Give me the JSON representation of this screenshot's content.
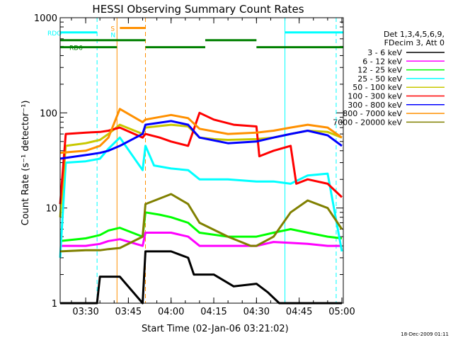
{
  "chart_data": {
    "type": "line",
    "title": "HESSI Observing Summary Count Rates",
    "xlabel": "Start Time (02-Jan-06 03:21:02)",
    "ylabel": "Count Rate (s⁻¹ detector⁻¹)",
    "yscale": "log",
    "xlim": [
      "03:21:02",
      "05:00:30"
    ],
    "ylim": [
      1,
      1000
    ],
    "x_ticks": [
      "03:30",
      "03:45",
      "04:00",
      "04:15",
      "04:30",
      "04:45",
      "05:00"
    ],
    "y_ticks": [
      "1",
      "10",
      "100",
      "1000"
    ],
    "legend_header": [
      "Det 1,3,4,5,6,9,",
      "FDecim 3, Att 0"
    ],
    "timestamp": "18-Dec-2009 01:11",
    "series": [
      {
        "name": "3 - 6 keV",
        "color": "#000000",
        "points": [
          [
            "03:21:02",
            1
          ],
          [
            "03:34",
            1
          ],
          [
            "03:35",
            1.9
          ],
          [
            "03:37",
            1.9
          ],
          [
            "03:42",
            1.9
          ],
          [
            "03:50",
            1
          ],
          [
            "03:51",
            3.5
          ],
          [
            "04:00",
            3.5
          ],
          [
            "04:06",
            3
          ],
          [
            "04:08",
            2
          ],
          [
            "04:15",
            2
          ],
          [
            "04:22",
            1.5
          ],
          [
            "04:30",
            1.6
          ],
          [
            "04:34",
            1.3
          ],
          [
            "04:38",
            1
          ],
          [
            "04:55",
            1
          ],
          [
            "05:00",
            1
          ]
        ]
      },
      {
        "name": "6 - 12 keV",
        "color": "#ff00ff",
        "points": [
          [
            "03:21:02",
            4
          ],
          [
            "03:30",
            4
          ],
          [
            "03:35",
            4.2
          ],
          [
            "03:38",
            4.5
          ],
          [
            "03:42",
            4.7
          ],
          [
            "03:50",
            4
          ],
          [
            "03:51",
            5.5
          ],
          [
            "04:00",
            5.5
          ],
          [
            "04:06",
            5
          ],
          [
            "04:10",
            4
          ],
          [
            "04:20",
            4
          ],
          [
            "04:30",
            4
          ],
          [
            "04:36",
            4.4
          ],
          [
            "04:42",
            4.3
          ],
          [
            "04:48",
            4.2
          ],
          [
            "04:55",
            4
          ],
          [
            "05:00",
            4
          ]
        ]
      },
      {
        "name": "12 - 25 keV",
        "color": "#00ff00",
        "points": [
          [
            "03:21:02",
            4.5
          ],
          [
            "03:30",
            4.8
          ],
          [
            "03:35",
            5.2
          ],
          [
            "03:38",
            5.8
          ],
          [
            "03:42",
            6.2
          ],
          [
            "03:50",
            5
          ],
          [
            "03:51",
            9
          ],
          [
            "03:56",
            8.5
          ],
          [
            "04:00",
            8
          ],
          [
            "04:06",
            7
          ],
          [
            "04:10",
            5.5
          ],
          [
            "04:20",
            5
          ],
          [
            "04:30",
            5
          ],
          [
            "04:36",
            5.5
          ],
          [
            "04:42",
            6
          ],
          [
            "04:48",
            5.5
          ],
          [
            "04:55",
            5
          ],
          [
            "05:00",
            4.8
          ]
        ]
      },
      {
        "name": "25 - 50 keV",
        "color": "#00ffff",
        "points": [
          [
            "03:21:02",
            3
          ],
          [
            "03:23",
            30
          ],
          [
            "03:30",
            31
          ],
          [
            "03:35",
            33
          ],
          [
            "03:38",
            42
          ],
          [
            "03:42",
            55
          ],
          [
            "03:50",
            25
          ],
          [
            "03:51",
            45
          ],
          [
            "03:54",
            28
          ],
          [
            "04:00",
            26
          ],
          [
            "04:06",
            25
          ],
          [
            "04:10",
            20
          ],
          [
            "04:20",
            20
          ],
          [
            "04:30",
            19
          ],
          [
            "04:36",
            19
          ],
          [
            "04:42",
            18
          ],
          [
            "04:48",
            22
          ],
          [
            "04:55",
            23
          ],
          [
            "05:00",
            3.5
          ]
        ]
      },
      {
        "name": "50 - 100 keV",
        "color": "#c8c800",
        "points": [
          [
            "03:21:02",
            8
          ],
          [
            "03:23",
            45
          ],
          [
            "03:30",
            48
          ],
          [
            "03:35",
            52
          ],
          [
            "03:38",
            60
          ],
          [
            "03:42",
            75
          ],
          [
            "03:50",
            60
          ],
          [
            "03:51",
            70
          ],
          [
            "04:00",
            75
          ],
          [
            "04:06",
            72
          ],
          [
            "04:10",
            55
          ],
          [
            "04:15",
            53
          ],
          [
            "04:20",
            52
          ],
          [
            "04:30",
            53
          ],
          [
            "04:36",
            55
          ],
          [
            "04:42",
            60
          ],
          [
            "04:48",
            65
          ],
          [
            "04:55",
            63
          ],
          [
            "05:00",
            55
          ]
        ]
      },
      {
        "name": "100 - 300 keV",
        "color": "#ff0000",
        "points": [
          [
            "03:21:02",
            11
          ],
          [
            "03:23",
            60
          ],
          [
            "03:30",
            62
          ],
          [
            "03:35",
            63
          ],
          [
            "03:38",
            65
          ],
          [
            "03:42",
            70
          ],
          [
            "03:50",
            55
          ],
          [
            "03:51",
            60
          ],
          [
            "03:56",
            55
          ],
          [
            "04:00",
            50
          ],
          [
            "04:06",
            45
          ],
          [
            "04:10",
            100
          ],
          [
            "04:15",
            85
          ],
          [
            "04:22",
            75
          ],
          [
            "04:30",
            72
          ],
          [
            "04:31",
            35
          ],
          [
            "04:36",
            40
          ],
          [
            "04:42",
            45
          ],
          [
            "04:44",
            18
          ],
          [
            "04:48",
            20
          ],
          [
            "04:55",
            18
          ],
          [
            "05:00",
            13
          ]
        ]
      },
      {
        "name": "300 - 800 keV",
        "color": "#0000ff",
        "points": [
          [
            "03:21:02",
            33
          ],
          [
            "03:30",
            36
          ],
          [
            "03:35",
            38
          ],
          [
            "03:38",
            40
          ],
          [
            "03:42",
            45
          ],
          [
            "03:50",
            60
          ],
          [
            "03:51",
            75
          ],
          [
            "04:00",
            82
          ],
          [
            "04:06",
            75
          ],
          [
            "04:10",
            55
          ],
          [
            "04:20",
            48
          ],
          [
            "04:30",
            50
          ],
          [
            "04:36",
            55
          ],
          [
            "04:42",
            60
          ],
          [
            "04:48",
            65
          ],
          [
            "04:55",
            58
          ],
          [
            "05:00",
            45
          ]
        ]
      },
      {
        "name": "800 - 7000 keV",
        "color": "#ff9000",
        "points": [
          [
            "03:21:02",
            38
          ],
          [
            "03:30",
            40
          ],
          [
            "03:35",
            45
          ],
          [
            "03:38",
            55
          ],
          [
            "03:42",
            110
          ],
          [
            "03:50",
            80
          ],
          [
            "03:51",
            85
          ],
          [
            "04:00",
            95
          ],
          [
            "04:06",
            88
          ],
          [
            "04:10",
            68
          ],
          [
            "04:20",
            60
          ],
          [
            "04:30",
            62
          ],
          [
            "04:36",
            65
          ],
          [
            "04:42",
            70
          ],
          [
            "04:48",
            75
          ],
          [
            "04:55",
            70
          ],
          [
            "05:00",
            55
          ]
        ]
      },
      {
        "name": "7000 - 20000 keV",
        "color": "#808000",
        "points": [
          [
            "03:21:02",
            3.5
          ],
          [
            "03:30",
            3.6
          ],
          [
            "03:35",
            3.6
          ],
          [
            "03:38",
            3.7
          ],
          [
            "03:42",
            3.8
          ],
          [
            "03:50",
            5
          ],
          [
            "03:51",
            11
          ],
          [
            "04:00",
            14
          ],
          [
            "04:06",
            11
          ],
          [
            "04:10",
            7
          ],
          [
            "04:20",
            5
          ],
          [
            "04:28",
            4
          ],
          [
            "04:30",
            4
          ],
          [
            "04:36",
            5
          ],
          [
            "04:42",
            9
          ],
          [
            "04:48",
            12
          ],
          [
            "04:55",
            10
          ],
          [
            "05:00",
            6
          ]
        ]
      }
    ],
    "flags": [
      {
        "label": "RDO",
        "color": "#00ffff",
        "level": 700,
        "segments": [
          [
            "03:21:02",
            "03:34"
          ],
          [
            "04:40",
            "05:00:30"
          ]
        ]
      },
      {
        "label": "",
        "color": "#008000",
        "level": 580,
        "segments": [
          [
            "03:21:02",
            "03:51"
          ],
          [
            "04:12",
            "04:30"
          ]
        ]
      },
      {
        "label": "RD6",
        "color": "#008000",
        "level": 490,
        "segments": [
          [
            "03:21:02",
            "03:41"
          ],
          [
            "03:51",
            "04:12"
          ],
          [
            "04:30",
            "05:00:30"
          ]
        ]
      },
      {
        "label": "S",
        "color": "#ff9000",
        "level": 780,
        "segments": [
          [
            "03:42",
            "03:51"
          ]
        ]
      }
    ],
    "flag_marker_n": "N",
    "vertical_markers": [
      {
        "time": "03:34",
        "color": "#00ffff",
        "style": "dashed"
      },
      {
        "time": "03:41",
        "color": "#ff9000",
        "style": "solid"
      },
      {
        "time": "03:51",
        "color": "#ff9000",
        "style": "dashed"
      },
      {
        "time": "04:40",
        "color": "#00ffff",
        "style": "solid"
      },
      {
        "time": "04:58",
        "color": "#00ffff",
        "style": "dashed"
      }
    ]
  }
}
